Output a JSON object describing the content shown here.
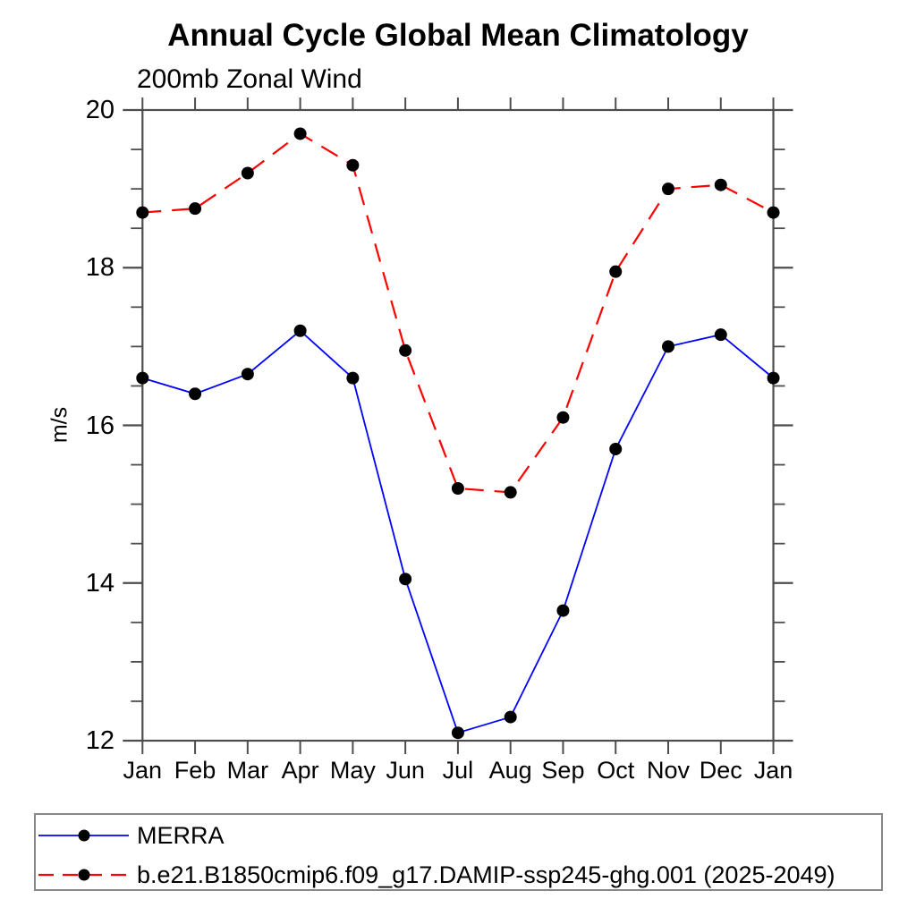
{
  "chart_data": {
    "type": "line",
    "title": "Annual Cycle Global Mean Climatology",
    "subtitle": "200mb Zonal Wind",
    "xlabel": "",
    "ylabel": "m/s",
    "categories": [
      "Jan",
      "Feb",
      "Mar",
      "Apr",
      "May",
      "Jun",
      "Jul",
      "Aug",
      "Sep",
      "Oct",
      "Nov",
      "Dec",
      "Jan"
    ],
    "ylim": [
      12,
      20
    ],
    "ytick_major": [
      12,
      14,
      16,
      18,
      20
    ],
    "ytick_minor_step": 0.5,
    "grid": false,
    "legend_position": "bottom-left-boxed",
    "axis_color": "#4d4d4d",
    "marker_color": "#000000",
    "series": [
      {
        "name": "MERRA",
        "color": "#0000ff",
        "style": "solid",
        "marker": "filled-circle",
        "values": [
          16.6,
          16.4,
          16.65,
          17.2,
          16.6,
          14.05,
          12.1,
          12.3,
          13.65,
          15.7,
          17.0,
          17.15,
          16.6
        ]
      },
      {
        "name": "b.e21.B1850cmip6.f09_g17.DAMIP-ssp245-ghg.001 (2025-2049)",
        "color": "#ff0000",
        "style": "dashed",
        "marker": "filled-circle",
        "values": [
          18.7,
          18.75,
          19.2,
          19.7,
          19.3,
          16.95,
          15.2,
          15.15,
          16.1,
          17.95,
          19.0,
          19.05,
          18.7
        ]
      }
    ]
  }
}
